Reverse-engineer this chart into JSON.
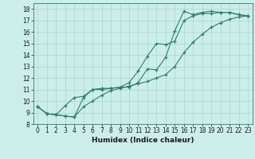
{
  "title": "",
  "xlabel": "Humidex (Indice chaleur)",
  "xlim": [
    -0.5,
    23.5
  ],
  "ylim": [
    8,
    18.5
  ],
  "xticks": [
    0,
    1,
    2,
    3,
    4,
    5,
    6,
    7,
    8,
    9,
    10,
    11,
    12,
    13,
    14,
    15,
    16,
    17,
    18,
    19,
    20,
    21,
    22,
    23
  ],
  "yticks": [
    8,
    9,
    10,
    11,
    12,
    13,
    14,
    15,
    16,
    17,
    18
  ],
  "bg_color": "#cceeea",
  "grid_color": "#aad4ce",
  "line_color": "#2e7d6e",
  "line1_x": [
    0,
    1,
    2,
    3,
    4,
    5,
    6,
    7,
    8,
    9,
    10,
    11,
    12,
    13,
    14,
    15,
    16,
    17,
    18,
    19,
    20,
    21,
    22,
    23
  ],
  "line1_y": [
    9.5,
    8.9,
    8.8,
    8.7,
    8.6,
    10.3,
    11.0,
    11.1,
    11.1,
    11.2,
    11.2,
    11.6,
    12.8,
    12.7,
    13.8,
    16.1,
    17.8,
    17.5,
    17.7,
    17.8,
    17.7,
    17.7,
    17.5,
    17.4
  ],
  "line2_x": [
    0,
    1,
    2,
    3,
    4,
    5,
    6,
    7,
    8,
    9,
    10,
    11,
    12,
    13,
    14,
    15,
    16,
    17,
    18,
    19,
    20,
    21,
    22,
    23
  ],
  "line2_y": [
    9.5,
    8.9,
    8.8,
    9.6,
    10.3,
    10.4,
    11.0,
    11.0,
    11.1,
    11.2,
    11.6,
    12.6,
    13.9,
    15.0,
    14.9,
    15.2,
    17.0,
    17.4,
    17.6,
    17.6,
    17.7,
    17.7,
    17.5,
    17.4
  ],
  "line3_x": [
    0,
    1,
    2,
    3,
    4,
    5,
    6,
    7,
    8,
    9,
    10,
    11,
    12,
    13,
    14,
    15,
    16,
    17,
    18,
    19,
    20,
    21,
    22,
    23
  ],
  "line3_y": [
    9.5,
    8.9,
    8.8,
    8.7,
    8.6,
    9.5,
    10.0,
    10.5,
    10.9,
    11.1,
    11.3,
    11.5,
    11.7,
    12.0,
    12.3,
    13.0,
    14.2,
    15.1,
    15.8,
    16.4,
    16.8,
    17.1,
    17.3,
    17.4
  ],
  "tick_fontsize": 5.5,
  "xlabel_fontsize": 6.5
}
